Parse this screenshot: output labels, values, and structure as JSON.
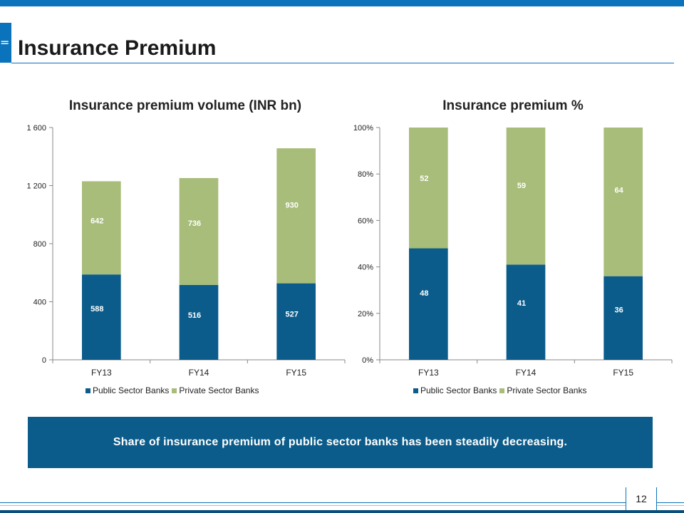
{
  "slide": {
    "title": "Insurance Premium",
    "page_number": "12",
    "callout": "Share of insurance premium of public sector banks has been steadily decreasing."
  },
  "colors": {
    "public": "#0b5c8a",
    "private": "#a8bd7a",
    "accent": "#0a73bb"
  },
  "chart_data": [
    {
      "type": "bar",
      "stacked": true,
      "title": "Insurance premium volume (INR bn)",
      "categories": [
        "FY13",
        "FY14",
        "FY15"
      ],
      "series": [
        {
          "name": "Public Sector Banks",
          "values": [
            588,
            516,
            527
          ]
        },
        {
          "name": "Private Sector Banks",
          "values": [
            642,
            736,
            930
          ]
        }
      ],
      "ylim": [
        0,
        1600
      ],
      "yticks": [
        0,
        400,
        800,
        1200,
        1600
      ],
      "ytick_labels": [
        "0",
        "400",
        "800",
        "1 200",
        "1 600"
      ],
      "legend": "bottom"
    },
    {
      "type": "bar",
      "stacked": true,
      "title": "Insurance premium %",
      "categories": [
        "FY13",
        "FY14",
        "FY15"
      ],
      "series": [
        {
          "name": "Public Sector Banks",
          "values": [
            48,
            41,
            36
          ]
        },
        {
          "name": "Private Sector Banks",
          "values": [
            52,
            59,
            64
          ]
        }
      ],
      "ylim": [
        0,
        100
      ],
      "yticks": [
        0,
        20,
        40,
        60,
        80,
        100
      ],
      "ytick_labels": [
        "0%",
        "20%",
        "40%",
        "60%",
        "80%",
        "100%"
      ],
      "legend": "bottom"
    }
  ]
}
